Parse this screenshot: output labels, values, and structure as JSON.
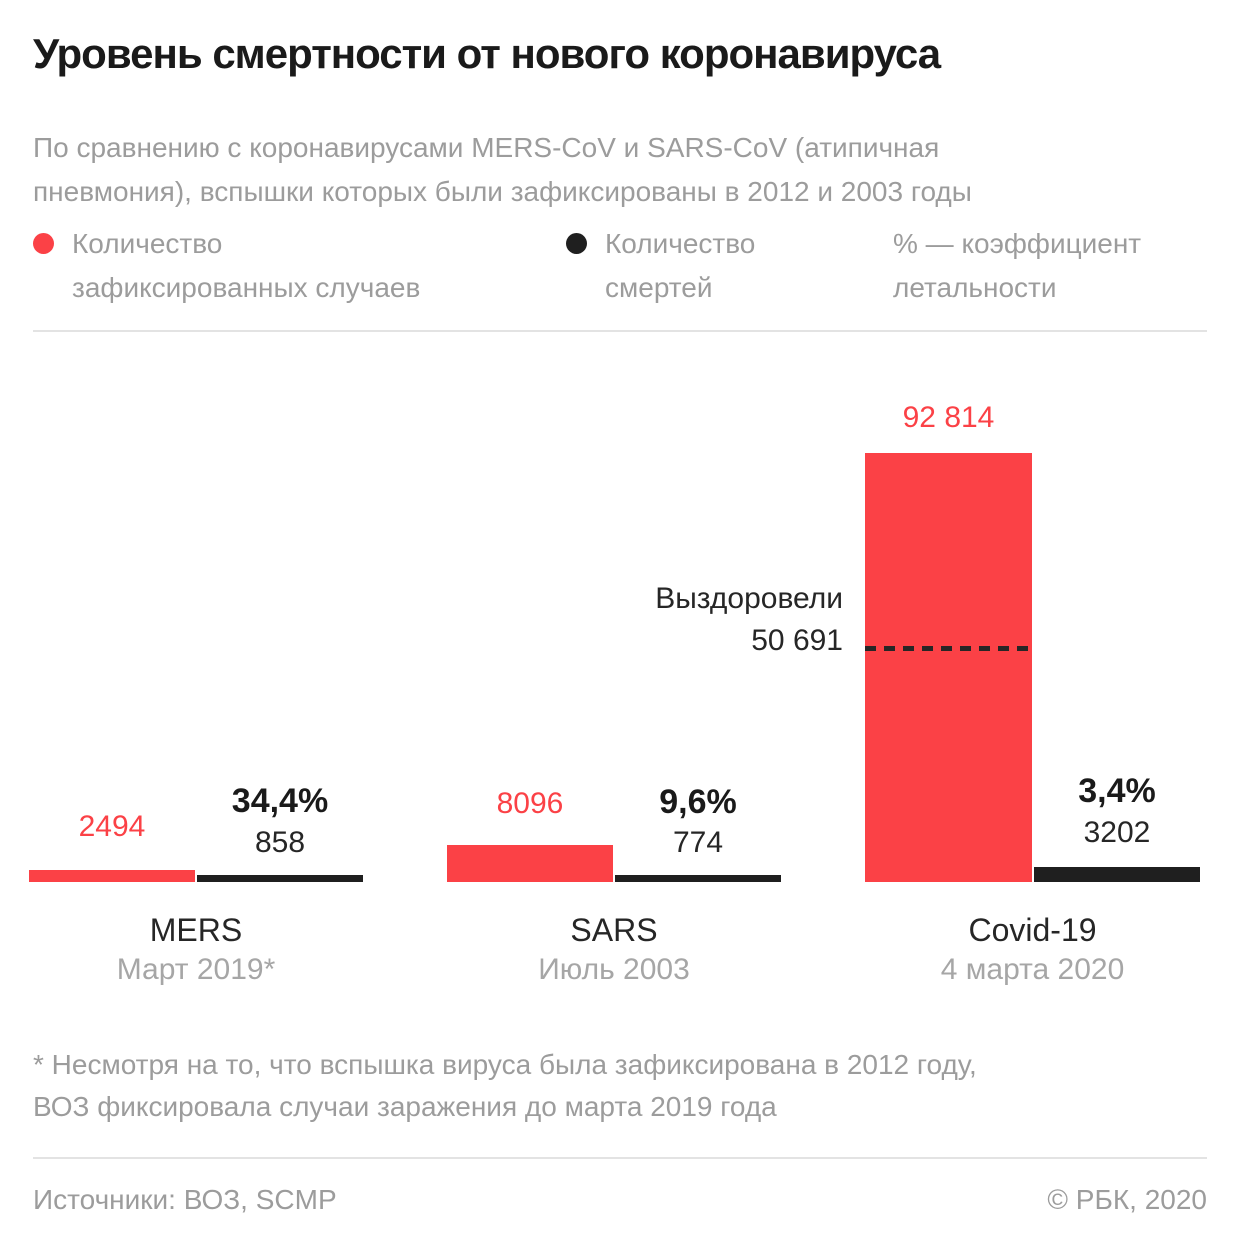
{
  "header": {
    "title": "Уровень смертности от нового коронавируса",
    "subtitle_line1": "По сравнению с коронавирусами MERS-CoV и SARS-CoV (атипичная",
    "subtitle_line2": "пневмония), вспышки которых были зафиксированы в 2012 и 2003 годы"
  },
  "legend": {
    "cases_line1": "Количество",
    "cases_line2": "зафиксированных случаев",
    "deaths_line1": "Количество",
    "deaths_line2": "смертей",
    "fatality_line1": "% — коэффициент",
    "fatality_line2": "летальности"
  },
  "colors": {
    "cases": "#FB4146",
    "deaths": "#1F1F1F",
    "accent_text": "#FB4146",
    "muted_text": "#9C9C9C",
    "dark_text": "#1A1A1A"
  },
  "chart_data": {
    "type": "bar",
    "title": "Уровень смертности от нового коронавируса",
    "xlabel": "",
    "ylabel": "",
    "grid": false,
    "legend_position": "top",
    "ylim": [
      0,
      92814
    ],
    "categories": [
      "MERS",
      "SARS",
      "Covid-19"
    ],
    "category_dates": [
      "Март 2019*",
      "Июль 2003",
      "4 марта 2020"
    ],
    "series": [
      {
        "name": "Количество зафиксированных случаев",
        "color": "#FB4146",
        "values": [
          2494,
          8096,
          92814
        ],
        "value_labels": [
          "2494",
          "8096",
          "92 814"
        ]
      },
      {
        "name": "Количество смертей",
        "color": "#1F1F1F",
        "values": [
          858,
          774,
          3202
        ],
        "value_labels": [
          "858",
          "774",
          "3202"
        ]
      }
    ],
    "fatality_rate_labels": [
      "34,4%",
      "9,6%",
      "3,4%"
    ],
    "recovered_annotation": {
      "label": "Выздоровели",
      "value": 50691,
      "value_label": "50 691",
      "applies_to": "Covid-19"
    }
  },
  "footnote": {
    "line1": "* Несмотря на то, что вспышка вируса была зафиксирована в 2012 году,",
    "line2": "ВОЗ фиксировала случаи заражения до марта 2019 года"
  },
  "footer": {
    "sources": "Источники: ВОЗ, SCMP",
    "copyright": "© РБК, 2020"
  }
}
